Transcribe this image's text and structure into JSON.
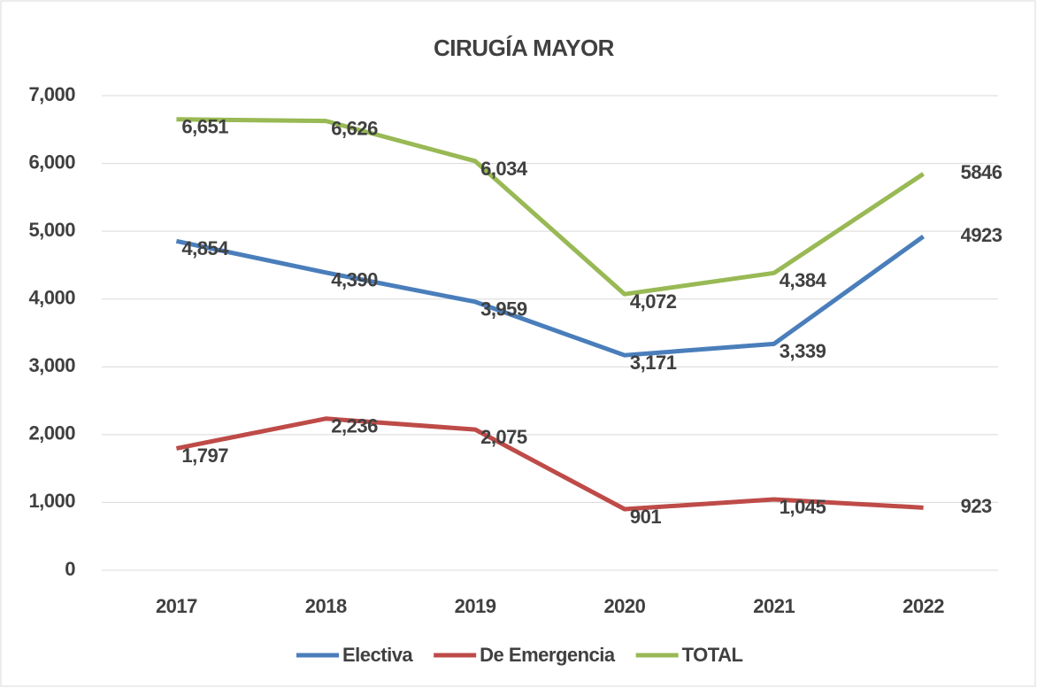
{
  "chart_data": {
    "type": "line",
    "title": "CIRUGÍA MAYOR",
    "categories": [
      "2017",
      "2018",
      "2019",
      "2020",
      "2021",
      "2022"
    ],
    "series": [
      {
        "name": "Electiva",
        "color": "#4a7ebb",
        "values": [
          4854,
          4390,
          3959,
          3171,
          3339,
          4923
        ],
        "value_labels": [
          "4,854",
          "4,390",
          "3,959",
          "3,171",
          "3,339",
          "4923"
        ]
      },
      {
        "name": "De Emergencia",
        "color": "#be4b48",
        "values": [
          1797,
          2236,
          2075,
          901,
          1045,
          923
        ],
        "value_labels": [
          "1,797",
          "2,236",
          "2,075",
          "901",
          "1,045",
          "923"
        ]
      },
      {
        "name": "TOTAL",
        "color": "#98b954",
        "values": [
          6651,
          6626,
          6034,
          4072,
          4384,
          5846
        ],
        "value_labels": [
          "6,651",
          "6,626",
          "6,034",
          "4,072",
          "4,384",
          "5846"
        ]
      }
    ],
    "ylim": [
      0,
      7000
    ],
    "yticks": [
      0,
      {
        "value": 1000,
        "label": "1,000"
      },
      {
        "value": 2000,
        "label": "2,000"
      },
      {
        "value": 3000,
        "label": "3,000"
      },
      {
        "value": 4000,
        "label": "4,000"
      },
      {
        "value": 5000,
        "label": "5,000"
      },
      {
        "value": 6000,
        "label": "6,000"
      },
      {
        "value": 7000,
        "label": "7,000"
      }
    ],
    "grid": true,
    "legend": "bottom"
  }
}
